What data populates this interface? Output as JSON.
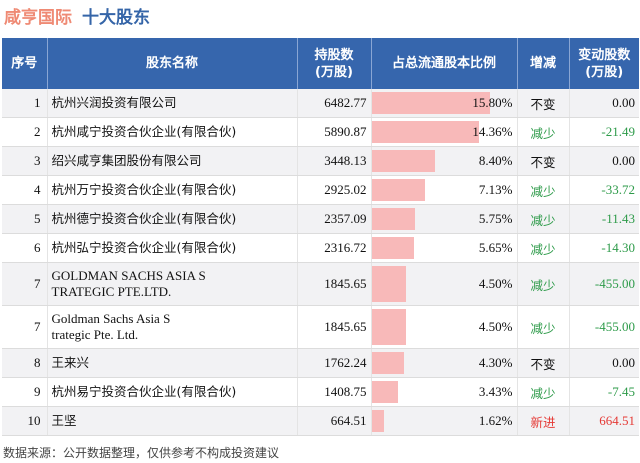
{
  "header": {
    "company": "咸亨国际",
    "section": "十大股东"
  },
  "colors": {
    "header_bg": "#3666ad",
    "bar": "#f8b9b9",
    "decrease": "#2e9b4a",
    "new": "#e53935",
    "neutral": "#111111"
  },
  "chart_data": {
    "type": "table",
    "columns": {
      "rank": "序号",
      "name": "股东名称",
      "shares_l1": "持股数",
      "shares_l2": "(万股)",
      "ratio": "占总流通股本比例",
      "change": "增减",
      "delta_l1": "变动股数",
      "delta_l2": "(万股)"
    },
    "ratio_axis_max": 15.8,
    "rows": [
      {
        "rank": "1",
        "name_lines": [
          "杭州兴润投资有限公司"
        ],
        "shares": "6482.77",
        "ratio": "15.80%",
        "ratio_value": 15.8,
        "change": "不变",
        "change_type": "same",
        "delta": "0.00"
      },
      {
        "rank": "2",
        "name_lines": [
          "杭州咸宁投资合伙企业(有限合伙)"
        ],
        "shares": "5890.87",
        "ratio": "14.36%",
        "ratio_value": 14.36,
        "change": "减少",
        "change_type": "decrease",
        "delta": "-21.49"
      },
      {
        "rank": "3",
        "name_lines": [
          "绍兴咸亨集团股份有限公司"
        ],
        "shares": "3448.13",
        "ratio": "8.40%",
        "ratio_value": 8.4,
        "change": "不变",
        "change_type": "same",
        "delta": "0.00"
      },
      {
        "rank": "4",
        "name_lines": [
          "杭州万宁投资合伙企业(有限合伙)"
        ],
        "shares": "2925.02",
        "ratio": "7.13%",
        "ratio_value": 7.13,
        "change": "减少",
        "change_type": "decrease",
        "delta": "-33.72"
      },
      {
        "rank": "5",
        "name_lines": [
          "杭州德宁投资合伙企业(有限合伙)"
        ],
        "shares": "2357.09",
        "ratio": "5.75%",
        "ratio_value": 5.75,
        "change": "减少",
        "change_type": "decrease",
        "delta": "-11.43"
      },
      {
        "rank": "6",
        "name_lines": [
          "杭州弘宁投资合伙企业(有限合伙)"
        ],
        "shares": "2316.72",
        "ratio": "5.65%",
        "ratio_value": 5.65,
        "change": "减少",
        "change_type": "decrease",
        "delta": "-14.30"
      },
      {
        "rank": "7",
        "name_lines": [
          "GOLDMAN SACHS ASIA S",
          "TRATEGIC PTE.LTD."
        ],
        "shares": "1845.65",
        "ratio": "4.50%",
        "ratio_value": 4.5,
        "change": "减少",
        "change_type": "decrease",
        "delta": "-455.00"
      },
      {
        "rank": "7",
        "name_lines": [
          "Goldman Sachs Asia S",
          "trategic Pte. Ltd."
        ],
        "shares": "1845.65",
        "ratio": "4.50%",
        "ratio_value": 4.5,
        "change": "减少",
        "change_type": "decrease",
        "delta": "-455.00"
      },
      {
        "rank": "8",
        "name_lines": [
          "王来兴"
        ],
        "shares": "1762.24",
        "ratio": "4.30%",
        "ratio_value": 4.3,
        "change": "不变",
        "change_type": "same",
        "delta": "0.00"
      },
      {
        "rank": "9",
        "name_lines": [
          "杭州易宁投资合伙企业(有限合伙)"
        ],
        "shares": "1408.75",
        "ratio": "3.43%",
        "ratio_value": 3.43,
        "change": "减少",
        "change_type": "decrease",
        "delta": "-7.45"
      },
      {
        "rank": "10",
        "name_lines": [
          "王坚"
        ],
        "shares": "664.51",
        "ratio": "1.62%",
        "ratio_value": 1.62,
        "change": "新进",
        "change_type": "new",
        "delta": "664.51"
      }
    ]
  },
  "footer": {
    "source": "数据来源：公开数据整理，仅供参考不构成投资建议"
  }
}
